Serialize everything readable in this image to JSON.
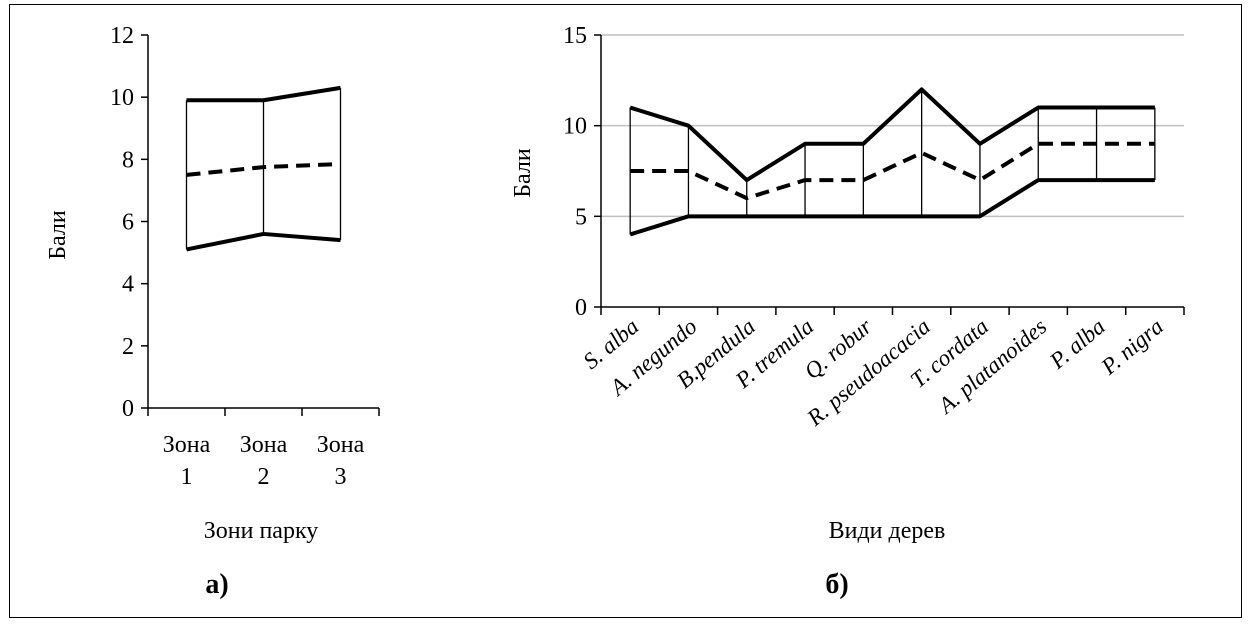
{
  "chart_data": [
    {
      "type": "line",
      "panel_label": "а)",
      "categories": [
        "Зона 1",
        "Зона 2",
        "Зона 3"
      ],
      "category_lines": [
        [
          "Зона",
          "1"
        ],
        [
          "Зона",
          "2"
        ],
        [
          "Зона",
          "3"
        ]
      ],
      "xlabel": "Зони парку",
      "ylabel": "Бали",
      "ylim": [
        0,
        12
      ],
      "yticks": [
        0,
        2,
        4,
        6,
        8,
        10,
        12
      ],
      "grid": false,
      "series": [
        {
          "values": [
            9.9,
            9.9,
            10.3
          ],
          "style": "solid"
        },
        {
          "values": [
            7.5,
            7.75,
            7.85
          ],
          "style": "dashed"
        },
        {
          "values": [
            5.1,
            5.6,
            5.4
          ],
          "style": "solid"
        }
      ],
      "vertical_connectors": true
    },
    {
      "type": "line",
      "panel_label": "б)",
      "categories": [
        "S. alba",
        "A. negundo",
        "B.pendula",
        "P. tremula",
        "Q. robur",
        "R. pseudoacacia",
        "T. cordata",
        "A. platanoides",
        "P. alba",
        "P. nigra"
      ],
      "xlabel": "Види дерев",
      "ylabel": "Бали",
      "ylim": [
        0,
        15
      ],
      "yticks": [
        0,
        5,
        10,
        15
      ],
      "grid": true,
      "series": [
        {
          "values": [
            11,
            10,
            7,
            9,
            9,
            12,
            9,
            11,
            11,
            11
          ],
          "style": "solid"
        },
        {
          "values": [
            7.5,
            7.5,
            6,
            7,
            7,
            8.5,
            7,
            9,
            9,
            9
          ],
          "style": "dashed"
        },
        {
          "values": [
            4,
            5,
            5,
            5,
            5,
            5,
            5,
            7,
            7,
            7
          ],
          "style": "solid"
        }
      ],
      "vertical_connectors": true
    }
  ],
  "colors": {
    "line": "#000000",
    "grid": "#bfbfbf",
    "background": "#ffffff"
  }
}
